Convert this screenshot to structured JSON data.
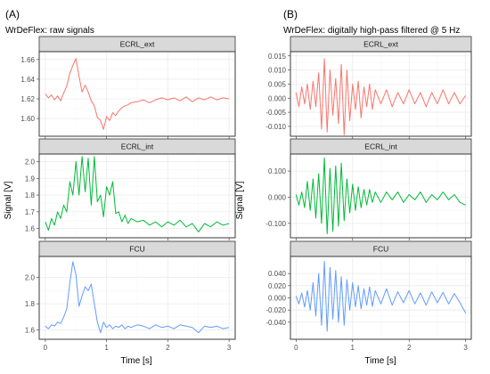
{
  "figure": {
    "ylabel_left": "Signal [V]",
    "ylabel_right": "Signal [V]",
    "xlabel_left": "Time [s]",
    "xlabel_right": "Time [s]"
  },
  "chart_data": [
    {
      "type": "line",
      "tag": "(A)",
      "title": "WrDeFlex: raw signals",
      "xlabel": "Time [s]",
      "ylabel": "Signal [V]",
      "xlim": [
        -0.1,
        3.1
      ],
      "xticks": [
        0,
        1,
        2,
        3
      ],
      "grid": true,
      "facets": [
        {
          "name": "ECRL_ext",
          "color": "#f8766d",
          "ylim": [
            1.582,
            1.668
          ],
          "yticks": [
            1.6,
            1.62,
            1.64,
            1.66
          ],
          "ytick_labels": [
            "1.60",
            "1.62",
            "1.64",
            "1.66"
          ],
          "x": [
            0,
            0.05,
            0.1,
            0.15,
            0.2,
            0.25,
            0.3,
            0.35,
            0.4,
            0.45,
            0.5,
            0.55,
            0.6,
            0.65,
            0.7,
            0.75,
            0.8,
            0.85,
            0.9,
            0.95,
            1.0,
            1.05,
            1.1,
            1.15,
            1.2,
            1.25,
            1.3,
            1.35,
            1.4,
            1.5,
            1.6,
            1.7,
            1.8,
            1.9,
            2.0,
            2.1,
            2.2,
            2.3,
            2.4,
            2.5,
            2.6,
            2.7,
            2.8,
            2.9,
            3.0
          ],
          "y": [
            1.625,
            1.621,
            1.624,
            1.619,
            1.623,
            1.618,
            1.626,
            1.633,
            1.646,
            1.654,
            1.661,
            1.643,
            1.627,
            1.634,
            1.627,
            1.618,
            1.613,
            1.601,
            1.598,
            1.589,
            1.602,
            1.598,
            1.606,
            1.603,
            1.608,
            1.611,
            1.613,
            1.614,
            1.616,
            1.617,
            1.619,
            1.616,
            1.619,
            1.621,
            1.619,
            1.621,
            1.618,
            1.622,
            1.617,
            1.621,
            1.619,
            1.622,
            1.619,
            1.621,
            1.62
          ]
        },
        {
          "name": "ECRL_int",
          "color": "#00ba38",
          "ylim": [
            1.545,
            2.045
          ],
          "yticks": [
            1.6,
            1.7,
            1.8,
            1.9,
            2.0
          ],
          "ytick_labels": [
            "1.6",
            "1.7",
            "1.8",
            "1.9",
            "2.0"
          ],
          "x": [
            0,
            0.05,
            0.1,
            0.15,
            0.2,
            0.25,
            0.3,
            0.35,
            0.4,
            0.45,
            0.5,
            0.55,
            0.6,
            0.65,
            0.7,
            0.75,
            0.8,
            0.85,
            0.9,
            0.95,
            1.0,
            1.05,
            1.1,
            1.15,
            1.2,
            1.25,
            1.3,
            1.35,
            1.4,
            1.5,
            1.6,
            1.7,
            1.8,
            1.9,
            2.0,
            2.1,
            2.2,
            2.3,
            2.4,
            2.5,
            2.6,
            2.7,
            2.8,
            2.9,
            3.0
          ],
          "y": [
            1.64,
            1.59,
            1.66,
            1.62,
            1.7,
            1.66,
            1.74,
            1.7,
            1.88,
            1.8,
            2.0,
            1.8,
            2.03,
            1.82,
            2.02,
            1.74,
            2.03,
            1.76,
            1.8,
            1.67,
            1.85,
            1.8,
            1.88,
            1.69,
            1.7,
            1.64,
            1.68,
            1.63,
            1.66,
            1.64,
            1.65,
            1.62,
            1.64,
            1.61,
            1.64,
            1.62,
            1.65,
            1.61,
            1.63,
            1.58,
            1.63,
            1.61,
            1.64,
            1.62,
            1.63
          ]
        },
        {
          "name": "FCU",
          "color": "#619cff",
          "ylim": [
            1.53,
            2.16
          ],
          "yticks": [
            1.6,
            1.8,
            2.0
          ],
          "ytick_labels": [
            "1.6",
            "1.8",
            "2.0"
          ],
          "x": [
            0,
            0.05,
            0.1,
            0.15,
            0.2,
            0.25,
            0.3,
            0.35,
            0.4,
            0.45,
            0.5,
            0.55,
            0.6,
            0.65,
            0.7,
            0.75,
            0.8,
            0.85,
            0.9,
            0.95,
            1.0,
            1.05,
            1.1,
            1.15,
            1.2,
            1.25,
            1.3,
            1.35,
            1.4,
            1.5,
            1.6,
            1.7,
            1.8,
            1.9,
            2.0,
            2.1,
            2.2,
            2.3,
            2.4,
            2.5,
            2.6,
            2.7,
            2.8,
            2.9,
            3.0
          ],
          "y": [
            1.63,
            1.61,
            1.64,
            1.63,
            1.66,
            1.65,
            1.7,
            1.76,
            1.96,
            2.12,
            2.02,
            1.78,
            1.86,
            1.93,
            1.9,
            1.95,
            1.8,
            1.66,
            1.58,
            1.66,
            1.62,
            1.64,
            1.61,
            1.63,
            1.62,
            1.64,
            1.61,
            1.63,
            1.62,
            1.64,
            1.63,
            1.61,
            1.64,
            1.62,
            1.63,
            1.61,
            1.64,
            1.63,
            1.62,
            1.58,
            1.63,
            1.62,
            1.63,
            1.61,
            1.62
          ]
        }
      ]
    },
    {
      "type": "line",
      "tag": "(B)",
      "title": "WrDeFlex: digitally high-pass filtered @ 5 Hz",
      "xlabel": "Time [s]",
      "ylabel": "Signal [V]",
      "xlim": [
        -0.1,
        3.1
      ],
      "xticks": [
        0,
        1,
        2,
        3
      ],
      "grid": true,
      "facets": [
        {
          "name": "ECRL_ext",
          "color": "#f8766d",
          "ylim": [
            -0.0135,
            0.0165
          ],
          "yticks": [
            -0.01,
            -0.005,
            0.0,
            0.005,
            0.01,
            0.015
          ],
          "ytick_labels": [
            "-0.010",
            "-0.005",
            "0.000",
            "0.005",
            "0.010",
            "0.015"
          ],
          "x": [
            0,
            0.05,
            0.1,
            0.15,
            0.2,
            0.25,
            0.3,
            0.35,
            0.4,
            0.45,
            0.5,
            0.55,
            0.6,
            0.65,
            0.7,
            0.75,
            0.8,
            0.85,
            0.9,
            0.95,
            1.0,
            1.05,
            1.1,
            1.15,
            1.2,
            1.25,
            1.3,
            1.35,
            1.4,
            1.5,
            1.6,
            1.7,
            1.8,
            1.9,
            2.0,
            2.1,
            2.2,
            2.3,
            2.4,
            2.5,
            2.6,
            2.7,
            2.8,
            2.9,
            3.0
          ],
          "y": [
            0.002,
            -0.003,
            0.004,
            -0.002,
            0.005,
            -0.004,
            0.006,
            -0.003,
            0.009,
            -0.011,
            0.014,
            -0.012,
            0.01,
            -0.006,
            0.007,
            -0.009,
            0.012,
            -0.013,
            0.01,
            -0.008,
            0.005,
            -0.004,
            0.006,
            -0.007,
            0.004,
            -0.003,
            0.005,
            -0.004,
            0.003,
            -0.002,
            0.003,
            -0.003,
            0.002,
            -0.002,
            0.003,
            -0.002,
            0.002,
            -0.003,
            0.002,
            -0.002,
            0.003,
            -0.002,
            0.002,
            -0.002,
            0.001
          ]
        },
        {
          "name": "ECRL_int",
          "color": "#00ba38",
          "ylim": [
            -0.155,
            0.165
          ],
          "yticks": [
            -0.1,
            0.0,
            0.1
          ],
          "ytick_labels": [
            "-0.100",
            "0.000",
            "0.100"
          ],
          "x": [
            0,
            0.05,
            0.1,
            0.15,
            0.2,
            0.25,
            0.3,
            0.35,
            0.4,
            0.45,
            0.5,
            0.55,
            0.6,
            0.65,
            0.7,
            0.75,
            0.8,
            0.85,
            0.9,
            0.95,
            1.0,
            1.05,
            1.1,
            1.15,
            1.2,
            1.25,
            1.3,
            1.35,
            1.4,
            1.5,
            1.6,
            1.7,
            1.8,
            1.9,
            2.0,
            2.1,
            2.2,
            2.3,
            2.4,
            2.5,
            2.6,
            2.7,
            2.8,
            2.9,
            3.0
          ],
          "y": [
            0.01,
            -0.03,
            0.02,
            -0.04,
            0.06,
            -0.05,
            0.07,
            -0.08,
            0.09,
            -0.1,
            0.15,
            -0.14,
            0.11,
            -0.13,
            0.12,
            -0.11,
            0.13,
            -0.09,
            0.07,
            -0.06,
            0.05,
            -0.05,
            0.04,
            -0.04,
            0.03,
            -0.03,
            0.03,
            -0.02,
            0.02,
            -0.02,
            0.02,
            -0.01,
            0.02,
            -0.02,
            0.01,
            -0.01,
            0.02,
            -0.02,
            0.01,
            -0.01,
            0.02,
            -0.01,
            0.01,
            -0.02,
            -0.03
          ]
        },
        {
          "name": "FCU",
          "color": "#619cff",
          "ylim": [
            -0.068,
            0.068
          ],
          "yticks": [
            -0.04,
            -0.02,
            0.0,
            0.02,
            0.04
          ],
          "ytick_labels": [
            "-0.040",
            "-0.020",
            "0.000",
            "0.020",
            "0.040"
          ],
          "x": [
            0,
            0.05,
            0.1,
            0.15,
            0.2,
            0.25,
            0.3,
            0.35,
            0.4,
            0.45,
            0.5,
            0.55,
            0.6,
            0.65,
            0.7,
            0.75,
            0.8,
            0.85,
            0.9,
            0.95,
            1.0,
            1.05,
            1.1,
            1.15,
            1.2,
            1.25,
            1.3,
            1.35,
            1.4,
            1.5,
            1.6,
            1.7,
            1.8,
            1.9,
            2.0,
            2.1,
            2.2,
            2.3,
            2.4,
            2.5,
            2.6,
            2.7,
            2.8,
            2.9,
            3.0
          ],
          "y": [
            0.003,
            -0.01,
            0.008,
            -0.015,
            0.012,
            -0.02,
            0.025,
            -0.03,
            0.04,
            -0.045,
            0.06,
            -0.055,
            0.05,
            -0.035,
            0.045,
            -0.04,
            0.035,
            -0.045,
            0.03,
            -0.02,
            0.025,
            -0.015,
            0.02,
            -0.018,
            0.015,
            -0.012,
            0.018,
            -0.014,
            0.012,
            -0.01,
            0.015,
            -0.012,
            0.01,
            -0.008,
            0.012,
            -0.01,
            0.008,
            -0.012,
            0.01,
            -0.008,
            0.009,
            -0.01,
            0.007,
            -0.008,
            -0.025
          ]
        }
      ]
    }
  ]
}
